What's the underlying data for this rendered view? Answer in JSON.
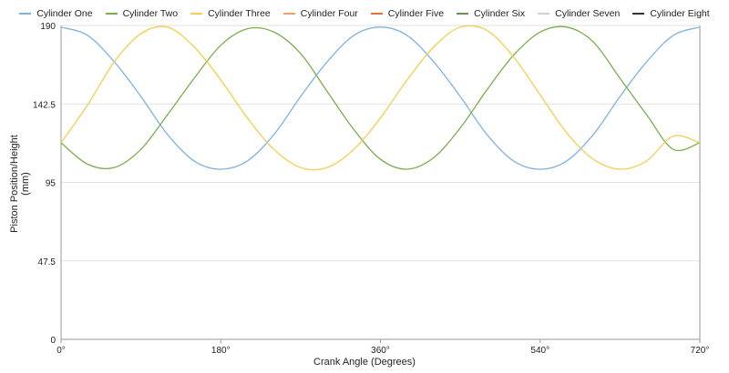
{
  "chart_data": {
    "type": "line",
    "title": "",
    "xlabel": "Crank Angle (Degrees)",
    "ylabel": "Piston Position/Height (mm)",
    "xlim": [
      0,
      720
    ],
    "ylim": [
      0,
      190
    ],
    "x_ticks": [
      0,
      180,
      360,
      540,
      720
    ],
    "x_tick_labels": [
      "0°",
      "180°",
      "360°",
      "540°",
      "720°"
    ],
    "y_ticks": [
      0,
      47.5,
      95,
      142.5,
      190
    ],
    "y_tick_labels": [
      "0",
      "47.5",
      "95",
      "142.5",
      "190"
    ],
    "grid": "horizontal",
    "legend_position": "top",
    "series": [
      {
        "name": "Cylinder One",
        "color": "#7fb2e0",
        "x": [
          0,
          30,
          60,
          90,
          120,
          150,
          180,
          210,
          240,
          270,
          300,
          330,
          360,
          390,
          420,
          450,
          480,
          510,
          540,
          570,
          600,
          630,
          660,
          690,
          720
        ],
        "values": [
          189,
          184,
          168,
          147,
          124,
          108,
          103,
          108,
          124,
          147,
          168,
          184,
          189,
          184,
          168,
          147,
          124,
          108,
          103,
          108,
          124,
          147,
          168,
          184,
          189
        ]
      },
      {
        "name": "Cylinder Two",
        "color": "#7aae4c",
        "x": [
          0,
          30,
          60,
          90,
          120,
          150,
          180,
          210,
          240,
          270,
          300,
          330,
          360,
          390,
          420,
          450,
          480,
          510,
          540,
          570,
          600,
          630,
          660,
          690,
          720
        ],
        "values": [
          119,
          106,
          104,
          115,
          136,
          158,
          178,
          188,
          186,
          173,
          150,
          127,
          109,
          103,
          110,
          128,
          151,
          172,
          186,
          189,
          180,
          158,
          136,
          115,
          119
        ]
      },
      {
        "name": "Cylinder Three",
        "color": "#f2cf50",
        "x": [
          0,
          30,
          60,
          90,
          120,
          150,
          180,
          210,
          240,
          270,
          300,
          330,
          360,
          390,
          420,
          450,
          480,
          510,
          540,
          570,
          600,
          630,
          660,
          690,
          720
        ],
        "values": [
          119,
          142,
          168,
          185,
          189,
          177,
          157,
          134,
          115,
          104,
          104,
          115,
          134,
          157,
          177,
          189,
          187,
          171,
          148,
          125,
          109,
          103,
          108,
          123,
          119
        ]
      },
      {
        "name": "Cylinder Four",
        "color": "#f0a060",
        "values": []
      },
      {
        "name": "Cylinder Five",
        "color": "#e8733a",
        "values": []
      },
      {
        "name": "Cylinder Six",
        "color": "#6f8a55",
        "values": []
      },
      {
        "name": "Cylinder Seven",
        "color": "#d0d0d0",
        "values": []
      },
      {
        "name": "Cylinder Eight",
        "color": "#333333",
        "values": []
      }
    ]
  }
}
